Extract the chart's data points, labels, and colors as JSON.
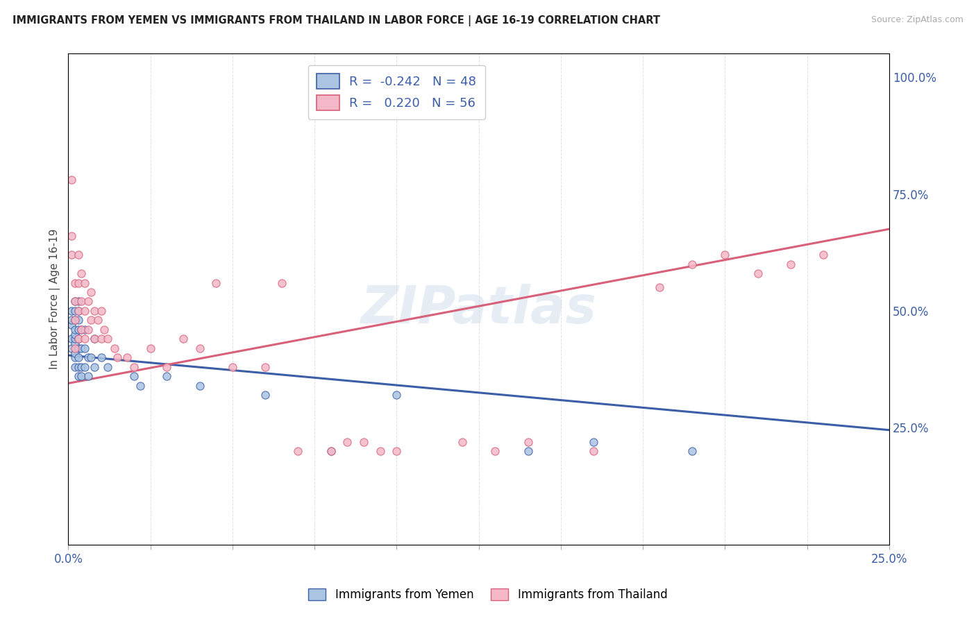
{
  "title": "IMMIGRANTS FROM YEMEN VS IMMIGRANTS FROM THAILAND IN LABOR FORCE | AGE 16-19 CORRELATION CHART",
  "source": "Source: ZipAtlas.com",
  "ylabel": "In Labor Force | Age 16-19",
  "right_yticks": [
    "25.0%",
    "50.0%",
    "75.0%",
    "100.0%"
  ],
  "right_ytick_vals": [
    0.25,
    0.5,
    0.75,
    1.0
  ],
  "legend_line1": "R =  -0.242   N = 48",
  "legend_line2": "R =   0.220   N = 56",
  "color_yemen": "#aac4e2",
  "color_thailand": "#f4b8c8",
  "line_color_yemen": "#3b5ea6",
  "line_color_thailand": "#d9607a",
  "watermark": "ZIPatlas",
  "yemen_x": [
    0.001,
    0.001,
    0.001,
    0.001,
    0.001,
    0.002,
    0.002,
    0.002,
    0.002,
    0.002,
    0.002,
    0.002,
    0.002,
    0.002,
    0.002,
    0.003,
    0.003,
    0.003,
    0.003,
    0.003,
    0.003,
    0.003,
    0.003,
    0.003,
    0.004,
    0.004,
    0.004,
    0.004,
    0.005,
    0.005,
    0.005,
    0.006,
    0.006,
    0.007,
    0.008,
    0.008,
    0.01,
    0.012,
    0.02,
    0.022,
    0.03,
    0.04,
    0.06,
    0.08,
    0.1,
    0.14,
    0.16,
    0.19
  ],
  "yemen_y": [
    0.42,
    0.44,
    0.47,
    0.48,
    0.5,
    0.38,
    0.4,
    0.41,
    0.43,
    0.44,
    0.45,
    0.46,
    0.48,
    0.5,
    0.52,
    0.36,
    0.38,
    0.4,
    0.42,
    0.44,
    0.46,
    0.48,
    0.5,
    0.52,
    0.36,
    0.38,
    0.42,
    0.46,
    0.38,
    0.42,
    0.46,
    0.36,
    0.4,
    0.4,
    0.38,
    0.44,
    0.4,
    0.38,
    0.36,
    0.34,
    0.36,
    0.34,
    0.32,
    0.2,
    0.32,
    0.2,
    0.22,
    0.2
  ],
  "thailand_x": [
    0.001,
    0.001,
    0.001,
    0.002,
    0.002,
    0.002,
    0.002,
    0.003,
    0.003,
    0.003,
    0.003,
    0.004,
    0.004,
    0.004,
    0.005,
    0.005,
    0.005,
    0.006,
    0.006,
    0.007,
    0.007,
    0.008,
    0.008,
    0.009,
    0.01,
    0.01,
    0.011,
    0.012,
    0.014,
    0.015,
    0.018,
    0.02,
    0.025,
    0.03,
    0.035,
    0.04,
    0.045,
    0.05,
    0.06,
    0.065,
    0.07,
    0.08,
    0.085,
    0.09,
    0.095,
    0.1,
    0.12,
    0.13,
    0.14,
    0.16,
    0.18,
    0.19,
    0.2,
    0.21,
    0.22,
    0.23
  ],
  "thailand_y": [
    0.62,
    0.66,
    0.78,
    0.42,
    0.48,
    0.52,
    0.56,
    0.44,
    0.5,
    0.56,
    0.62,
    0.46,
    0.52,
    0.58,
    0.44,
    0.5,
    0.56,
    0.46,
    0.52,
    0.48,
    0.54,
    0.44,
    0.5,
    0.48,
    0.44,
    0.5,
    0.46,
    0.44,
    0.42,
    0.4,
    0.4,
    0.38,
    0.42,
    0.38,
    0.44,
    0.42,
    0.56,
    0.38,
    0.38,
    0.56,
    0.2,
    0.2,
    0.22,
    0.22,
    0.2,
    0.2,
    0.22,
    0.2,
    0.22,
    0.2,
    0.55,
    0.6,
    0.62,
    0.58,
    0.6,
    0.62
  ],
  "xlim": [
    0.0,
    0.25
  ],
  "ylim": [
    0.0,
    1.05
  ],
  "background_color": "#ffffff",
  "grid_color": "#dddddd",
  "yemen_trend_x0": 0.0,
  "yemen_trend_y0": 0.405,
  "yemen_trend_x1": 0.25,
  "yemen_trend_y1": 0.245,
  "thailand_trend_x0": 0.0,
  "thailand_trend_y0": 0.345,
  "thailand_trend_x1": 0.25,
  "thailand_trend_y1": 0.675
}
